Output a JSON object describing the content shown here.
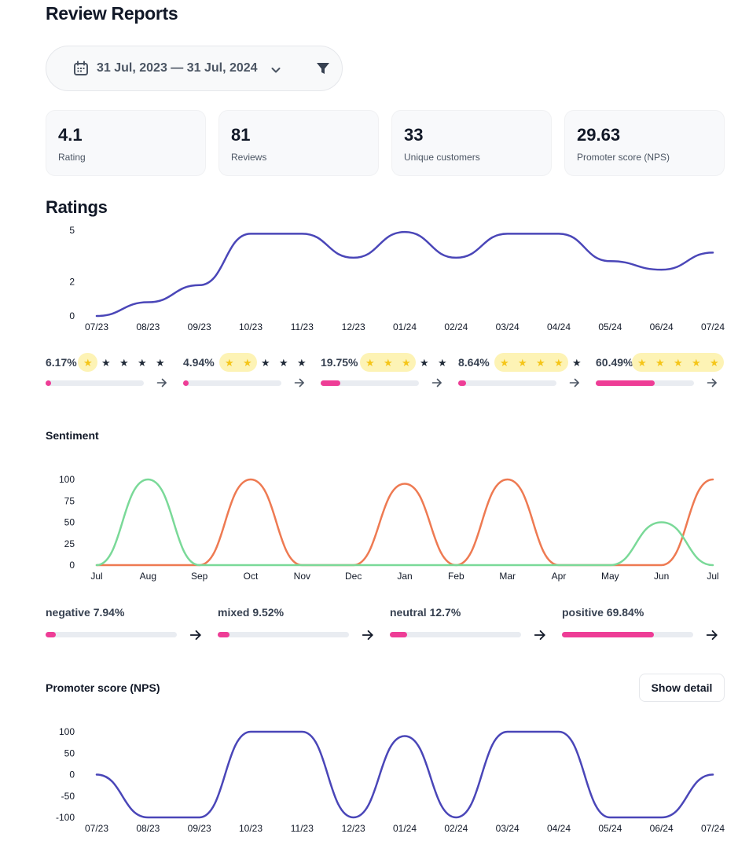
{
  "header": {
    "title": "Review Reports"
  },
  "filters": {
    "date_range": "31 Jul, 2023 — 31 Jul, 2024",
    "filter_icon": "filter-icon",
    "calendar_icon": "calendar-icon"
  },
  "stats": [
    {
      "value": "4.1",
      "label": "Rating"
    },
    {
      "value": "81",
      "label": "Reviews"
    },
    {
      "value": "33",
      "label": "Unique customers"
    },
    {
      "value": "29.63",
      "label": "Promoter score (NPS)"
    }
  ],
  "ratings": {
    "title": "Ratings",
    "breakdown": [
      {
        "percent": "6.17%",
        "stars": 1,
        "fill": 0.05
      },
      {
        "percent": "4.94%",
        "stars": 2,
        "fill": 0.04
      },
      {
        "percent": "19.75%",
        "stars": 3,
        "fill": 0.2
      },
      {
        "percent": "8.64%",
        "stars": 4,
        "fill": 0.08
      },
      {
        "percent": "60.49%",
        "stars": 5,
        "fill": 0.6
      }
    ]
  },
  "sentiment": {
    "title": "Sentiment",
    "breakdown": [
      {
        "label": "negative 7.94%",
        "fill": 0.08
      },
      {
        "label": "mixed 9.52%",
        "fill": 0.09
      },
      {
        "label": "neutral 12.7%",
        "fill": 0.13
      },
      {
        "label": "positive 69.84%",
        "fill": 0.7
      }
    ]
  },
  "nps": {
    "title": "Promoter score (NPS)",
    "show_detail_label": "Show detail"
  },
  "colors": {
    "ratings_line": "#4a46b8",
    "nps_line": "#4a46b8",
    "sentiment_orange": "#ee7a52",
    "sentiment_green": "#7ad998",
    "bar_fill": "#ee3d96",
    "star_gold": "#f5c518"
  },
  "chart_data": [
    {
      "type": "line",
      "title": "Ratings",
      "categories": [
        "07/23",
        "08/23",
        "09/23",
        "10/23",
        "11/23",
        "12/23",
        "01/24",
        "02/24",
        "03/24",
        "04/24",
        "05/24",
        "06/24",
        "07/24"
      ],
      "series": [
        {
          "name": "Rating",
          "values": [
            0,
            0.8,
            1.8,
            4.8,
            4.8,
            3.4,
            4.9,
            3.4,
            4.8,
            4.8,
            3.2,
            2.7,
            3.7
          ]
        }
      ],
      "y_ticks": [
        "0",
        "2",
        "5"
      ],
      "ylim": [
        0,
        5
      ]
    },
    {
      "type": "line",
      "title": "Sentiment",
      "categories": [
        "Jul",
        "Aug",
        "Sep",
        "Oct",
        "Nov",
        "Dec",
        "Jan",
        "Feb",
        "Mar",
        "Apr",
        "May",
        "Jun",
        "Jul"
      ],
      "series": [
        {
          "name": "negative",
          "values": [
            0,
            0,
            0,
            100,
            0,
            0,
            95,
            0,
            100,
            0,
            0,
            0,
            100
          ]
        },
        {
          "name": "positive",
          "values": [
            0,
            100,
            0,
            0,
            0,
            0,
            0,
            0,
            0,
            0,
            0,
            50,
            0
          ]
        }
      ],
      "y_ticks": [
        "0",
        "25",
        "50",
        "75",
        "100"
      ],
      "ylim": [
        0,
        100
      ]
    },
    {
      "type": "line",
      "title": "Promoter score (NPS)",
      "categories": [
        "07/23",
        "08/23",
        "09/23",
        "10/23",
        "11/23",
        "12/23",
        "01/24",
        "02/24",
        "03/24",
        "04/24",
        "05/24",
        "06/24",
        "07/24"
      ],
      "series": [
        {
          "name": "NPS",
          "values": [
            0,
            -100,
            -100,
            100,
            100,
            -100,
            90,
            -100,
            100,
            100,
            -100,
            -100,
            0
          ]
        }
      ],
      "y_ticks": [
        "-100",
        "-50",
        "0",
        "50",
        "100"
      ],
      "ylim": [
        -100,
        100
      ]
    }
  ]
}
